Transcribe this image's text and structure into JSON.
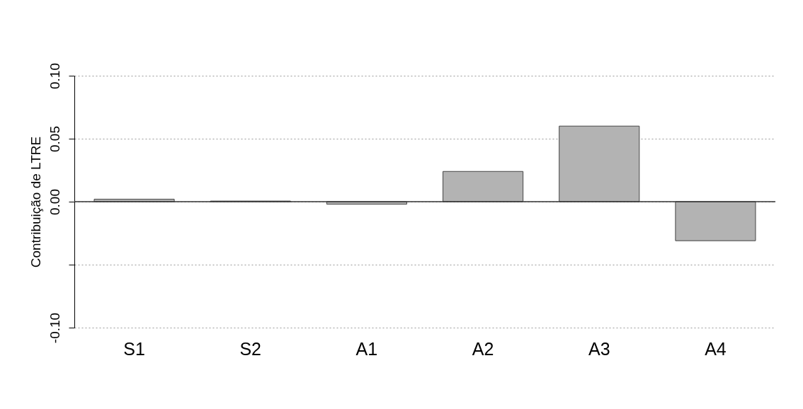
{
  "chart_data": {
    "type": "bar",
    "ylabel": "Contribuição de LTRE",
    "categories": [
      "S1",
      "S2",
      "A1",
      "A2",
      "A3",
      "A4"
    ],
    "values": [
      0.002,
      0.0005,
      -0.002,
      0.024,
      0.06,
      -0.031
    ],
    "color": "#b3b3b3",
    "ylim": [
      -0.1,
      0.1
    ],
    "yticks": [
      {
        "value": -0.1,
        "label": "-0.10"
      },
      {
        "value": -0.05,
        "label": null
      },
      {
        "value": 0,
        "label": "0.00"
      },
      0.05,
      {
        "value": 0.1,
        "label": "0.10"
      }
    ],
    "grid": "y",
    "ref_lines": [
      {
        "axis": "y",
        "value": 0,
        "color": "#333333",
        "line_style": "solid"
      }
    ]
  }
}
